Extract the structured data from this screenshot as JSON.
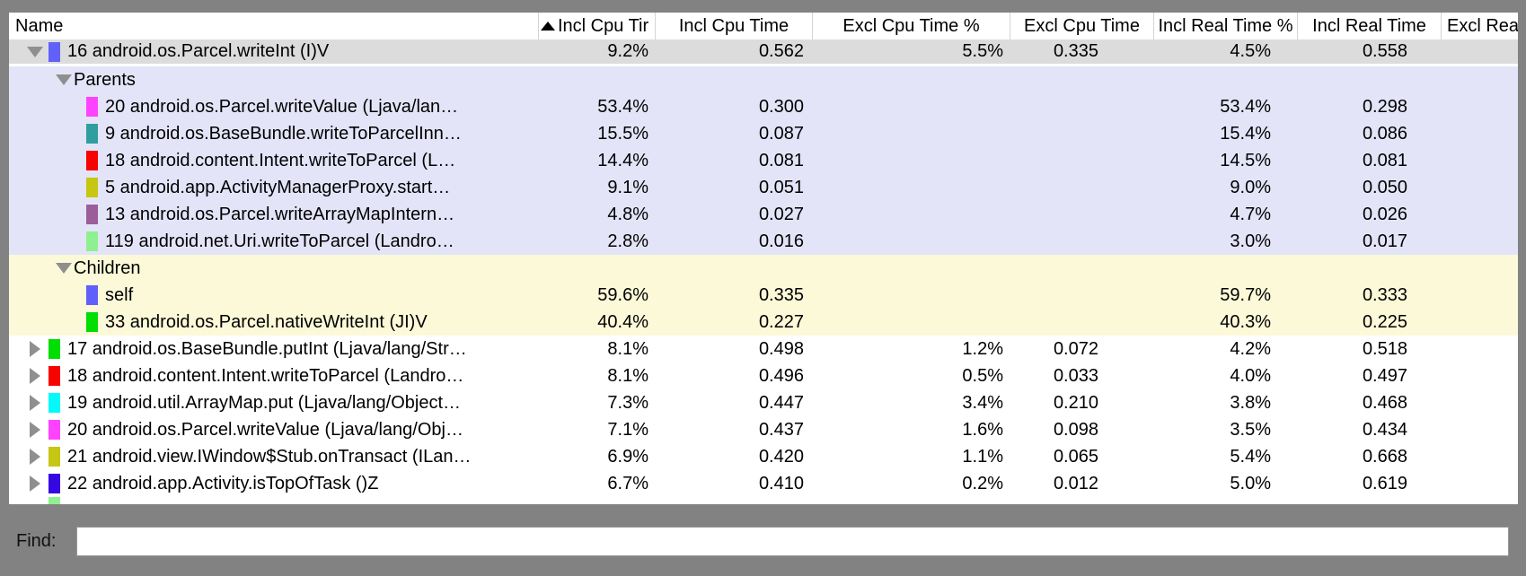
{
  "app": "Traceview method profile panel",
  "colors": {
    "frame": "#828282",
    "selected_row": "#dcdcdc",
    "parents_section": "#e4e4f9",
    "children_section": "#fbf9d8",
    "plain_row": "#ffffff",
    "disclosure_gray": "#8f8f8f"
  },
  "header": {
    "columns": [
      {
        "label": "Name"
      },
      {
        "label": "Incl Cpu Tir",
        "sorted": "ascending"
      },
      {
        "label": "Incl Cpu Time"
      },
      {
        "label": "Excl Cpu Time %"
      },
      {
        "label": "Excl Cpu Time"
      },
      {
        "label": "Incl Real Time %"
      },
      {
        "label": "Incl Real Time"
      },
      {
        "label": "Excl Real"
      }
    ]
  },
  "rows": [
    {
      "type": "method",
      "bg": "selected",
      "disclosure": "expanded",
      "indent": 0,
      "swatch": "#6161fa",
      "name": "16 android.os.Parcel.writeInt (I)V",
      "values": [
        "9.2%",
        "0.562",
        "5.5%",
        "0.335",
        "4.5%",
        "0.558"
      ]
    },
    {
      "type": "section",
      "bg": "parents",
      "disclosure": "expanded",
      "name": "Parents",
      "values": [
        "",
        "",
        "",
        "",
        "",
        ""
      ]
    },
    {
      "type": "method",
      "bg": "parents",
      "indent": 2,
      "swatch": "#ff42ff",
      "name": "20 android.os.Parcel.writeValue (Ljava/lan…",
      "values": [
        "53.4%",
        "0.300",
        "",
        "",
        "53.4%",
        "0.298"
      ]
    },
    {
      "type": "method",
      "bg": "parents",
      "indent": 2,
      "swatch": "#2f9e9e",
      "name": "9 android.os.BaseBundle.writeToParcelInn…",
      "values": [
        "15.5%",
        "0.087",
        "",
        "",
        "15.4%",
        "0.086"
      ]
    },
    {
      "type": "method",
      "bg": "parents",
      "indent": 2,
      "swatch": "#f80400",
      "name": "18 android.content.Intent.writeToParcel (L…",
      "values": [
        "14.4%",
        "0.081",
        "",
        "",
        "14.5%",
        "0.081"
      ]
    },
    {
      "type": "method",
      "bg": "parents",
      "indent": 2,
      "swatch": "#c6c613",
      "name": "5 android.app.ActivityManagerProxy.start…",
      "values": [
        "9.1%",
        "0.051",
        "",
        "",
        "9.0%",
        "0.050"
      ]
    },
    {
      "type": "method",
      "bg": "parents",
      "indent": 2,
      "swatch": "#9b5e9b",
      "name": "13 android.os.Parcel.writeArrayMapIntern…",
      "values": [
        "4.8%",
        "0.027",
        "",
        "",
        "4.7%",
        "0.026"
      ]
    },
    {
      "type": "method",
      "bg": "parents",
      "indent": 2,
      "swatch": "#8ef08e",
      "name": "119 android.net.Uri.writeToParcel (Landro…",
      "values": [
        "2.8%",
        "0.016",
        "",
        "",
        "3.0%",
        "0.017"
      ]
    },
    {
      "type": "section",
      "bg": "children",
      "disclosure": "expanded",
      "name": "Children",
      "values": [
        "",
        "",
        "",
        "",
        "",
        ""
      ]
    },
    {
      "type": "method",
      "bg": "children",
      "indent": 2,
      "swatch": "#5f5ffa",
      "name": "self",
      "values": [
        "59.6%",
        "0.335",
        "",
        "",
        "59.7%",
        "0.333"
      ]
    },
    {
      "type": "method",
      "bg": "children",
      "indent": 2,
      "swatch": "#02dd02",
      "name": "33 android.os.Parcel.nativeWriteInt (JI)V",
      "values": [
        "40.4%",
        "0.227",
        "",
        "",
        "40.3%",
        "0.225"
      ]
    },
    {
      "type": "method",
      "bg": "plain",
      "disclosure": "collapsed",
      "indent": 0,
      "swatch": "#02dd02",
      "name": "17 android.os.BaseBundle.putInt (Ljava/lang/Str…",
      "values": [
        "8.1%",
        "0.498",
        "1.2%",
        "0.072",
        "4.2%",
        "0.518"
      ]
    },
    {
      "type": "method",
      "bg": "plain",
      "disclosure": "collapsed",
      "indent": 0,
      "swatch": "#f80400",
      "name": "18 android.content.Intent.writeToParcel (Landro…",
      "values": [
        "8.1%",
        "0.496",
        "0.5%",
        "0.033",
        "4.0%",
        "0.497"
      ]
    },
    {
      "type": "method",
      "bg": "plain",
      "disclosure": "collapsed",
      "indent": 0,
      "swatch": "#04fafa",
      "name": "19 android.util.ArrayMap.put (Ljava/lang/Object…",
      "values": [
        "7.3%",
        "0.447",
        "3.4%",
        "0.210",
        "3.8%",
        "0.468"
      ]
    },
    {
      "type": "method",
      "bg": "plain",
      "disclosure": "collapsed",
      "indent": 0,
      "swatch": "#ff42ff",
      "name": "20 android.os.Parcel.writeValue (Ljava/lang/Obj…",
      "values": [
        "7.1%",
        "0.437",
        "1.6%",
        "0.098",
        "3.5%",
        "0.434"
      ]
    },
    {
      "type": "method",
      "bg": "plain",
      "disclosure": "collapsed",
      "indent": 0,
      "swatch": "#c6c613",
      "name": "21 android.view.IWindow$Stub.onTransact (ILan…",
      "values": [
        "6.9%",
        "0.420",
        "1.1%",
        "0.065",
        "5.4%",
        "0.668"
      ]
    },
    {
      "type": "method",
      "bg": "plain",
      "disclosure": "collapsed",
      "indent": 0,
      "swatch": "#3508e3",
      "name": "22 android.app.Activity.isTopOfTask ()Z",
      "values": [
        "6.7%",
        "0.410",
        "0.2%",
        "0.012",
        "5.0%",
        "0.619"
      ]
    },
    {
      "type": "partial",
      "bg": "plain",
      "indent": 0,
      "swatch": "#8ef08e",
      "name": "",
      "values": [
        "",
        "",
        "",
        "",
        "",
        ""
      ]
    }
  ],
  "find": {
    "label": "Find:",
    "value": ""
  }
}
